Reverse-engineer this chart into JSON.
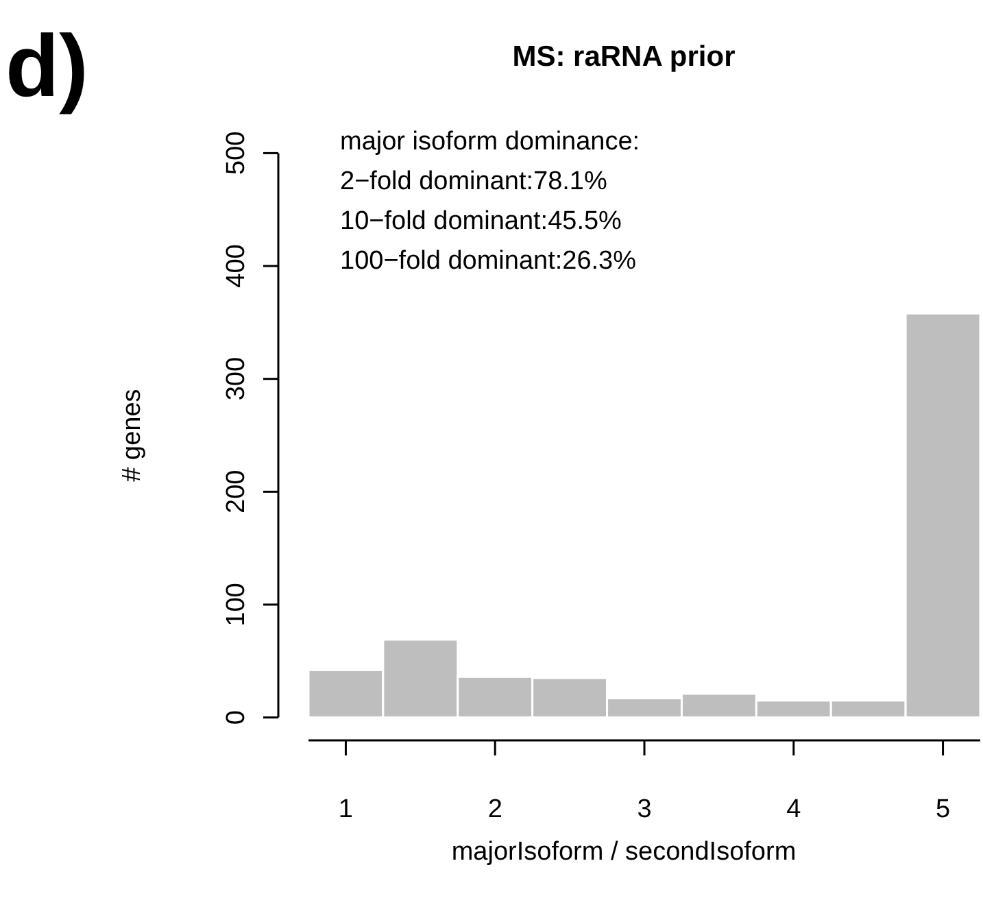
{
  "chart_data": {
    "type": "histogram",
    "title": "MS: raRNA prior",
    "xlabel": "majorIsoform / secondIsoform",
    "ylabel": "# genes",
    "bins": [
      0.75,
      1.25,
      1.75,
      2.25,
      2.75,
      3.25,
      3.75,
      4.25,
      4.75,
      5.25
    ],
    "values": [
      42,
      69,
      36,
      35,
      17,
      21,
      15,
      15,
      358
    ],
    "color": "#bebebe",
    "xlim": [
      0.75,
      5.25
    ],
    "xticks": [
      1,
      2,
      3,
      4,
      5
    ],
    "ylim": [
      0,
      500
    ],
    "yticks": [
      0,
      100,
      200,
      300,
      400,
      500
    ],
    "grid": false,
    "annotations": [
      "d)",
      "major isoform dominance:",
      "2−fold dominant:78.1%",
      "10−fold dominant:45.5%",
      "100−fold dominant:26.3%"
    ]
  }
}
